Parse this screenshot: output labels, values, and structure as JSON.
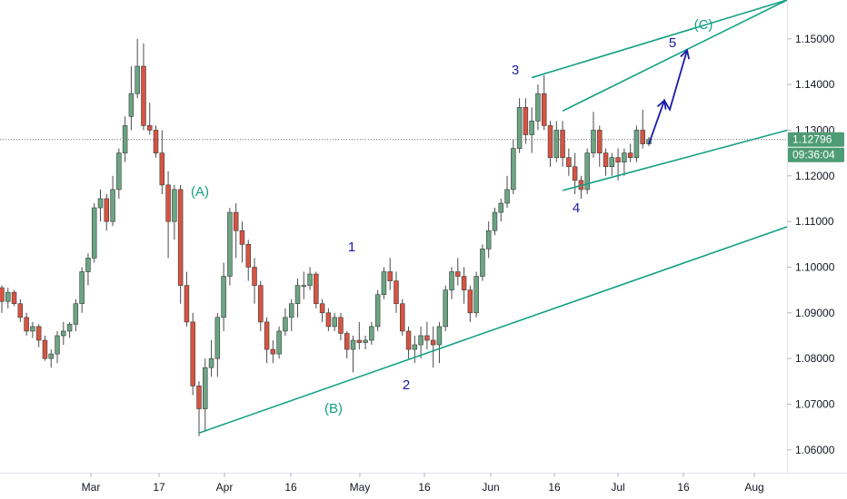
{
  "chart_data": {
    "type": "candlestick",
    "y_range": [
      1.055,
      1.1585
    ],
    "y_ticks": [
      "1.15000",
      "1.14000",
      "1.13000",
      "1.12000",
      "1.11000",
      "1.10000",
      "1.09000",
      "1.08000",
      "1.07000",
      "1.06000"
    ],
    "x_ticks": [
      "Mar",
      "17",
      "Apr",
      "16",
      "May",
      "16",
      "Jun",
      "16",
      "Jul",
      "16",
      "Aug"
    ],
    "last_price": "1.12796",
    "countdown": "09:36:04",
    "colors": {
      "up": "#6ba583",
      "down": "#d75442",
      "channel": "#14a085",
      "impulse": "#1a1aa8",
      "badge": "#4e9c74"
    },
    "candles": [
      [
        1.0955,
        1.096,
        1.09,
        1.0925
      ],
      [
        1.0925,
        1.0955,
        1.091,
        1.0945
      ],
      [
        1.0945,
        1.095,
        1.0915,
        1.092
      ],
      [
        1.092,
        1.093,
        1.088,
        1.089
      ],
      [
        1.089,
        1.09,
        1.085,
        1.086
      ],
      [
        1.086,
        1.088,
        1.0845,
        1.087
      ],
      [
        1.087,
        1.0875,
        1.0825,
        1.084
      ],
      [
        1.084,
        1.085,
        1.0795,
        1.08
      ],
      [
        1.08,
        1.082,
        1.078,
        1.081
      ],
      [
        1.081,
        1.086,
        1.079,
        1.085
      ],
      [
        1.085,
        1.088,
        1.083,
        1.086
      ],
      [
        1.086,
        1.088,
        1.0845,
        1.0875
      ],
      [
        1.0875,
        1.093,
        1.086,
        1.092
      ],
      [
        1.092,
        1.1,
        1.09,
        1.099
      ],
      [
        1.099,
        1.103,
        1.096,
        1.102
      ],
      [
        1.102,
        1.114,
        1.101,
        1.113
      ],
      [
        1.113,
        1.117,
        1.11,
        1.115
      ],
      [
        1.115,
        1.116,
        1.108,
        1.11
      ],
      [
        1.11,
        1.12,
        1.109,
        1.117
      ],
      [
        1.117,
        1.126,
        1.115,
        1.125
      ],
      [
        1.125,
        1.133,
        1.123,
        1.131
      ],
      [
        1.133,
        1.144,
        1.13,
        1.138
      ],
      [
        1.138,
        1.15,
        1.137,
        1.144
      ],
      [
        1.144,
        1.149,
        1.13,
        1.131
      ],
      [
        1.131,
        1.136,
        1.129,
        1.13
      ],
      [
        1.13,
        1.131,
        1.124,
        1.125
      ],
      [
        1.125,
        1.13,
        1.116,
        1.118
      ],
      [
        1.118,
        1.121,
        1.102,
        1.11
      ],
      [
        1.11,
        1.118,
        1.106,
        1.117
      ],
      [
        1.117,
        1.118,
        1.092,
        1.096
      ],
      [
        1.096,
        1.099,
        1.087,
        1.088
      ],
      [
        1.088,
        1.09,
        1.072,
        1.074
      ],
      [
        1.074,
        1.075,
        1.063,
        1.069
      ],
      [
        1.069,
        1.08,
        1.064,
        1.078
      ],
      [
        1.078,
        1.084,
        1.076,
        1.08
      ],
      [
        1.08,
        1.09,
        1.076,
        1.089
      ],
      [
        1.089,
        1.101,
        1.086,
        1.098
      ],
      [
        1.098,
        1.113,
        1.096,
        1.112
      ],
      [
        1.112,
        1.114,
        1.102,
        1.108
      ],
      [
        1.108,
        1.11,
        1.101,
        1.105
      ],
      [
        1.105,
        1.106,
        1.097,
        1.1
      ],
      [
        1.1,
        1.102,
        1.092,
        1.096
      ],
      [
        1.096,
        1.097,
        1.086,
        1.088
      ],
      [
        1.088,
        1.089,
        1.079,
        1.082
      ],
      [
        1.082,
        1.084,
        1.079,
        1.081
      ],
      [
        1.081,
        1.087,
        1.08,
        1.086
      ],
      [
        1.086,
        1.091,
        1.085,
        1.089
      ],
      [
        1.089,
        1.093,
        1.086,
        1.092
      ],
      [
        1.092,
        1.0975,
        1.089,
        1.096
      ],
      [
        1.096,
        1.099,
        1.093,
        1.096
      ],
      [
        1.096,
        1.1,
        1.095,
        1.0985
      ],
      [
        1.0985,
        1.099,
        1.091,
        1.092
      ],
      [
        1.092,
        1.093,
        1.088,
        1.09
      ],
      [
        1.09,
        1.091,
        1.086,
        1.087
      ],
      [
        1.087,
        1.09,
        1.086,
        1.089
      ],
      [
        1.089,
        1.09,
        1.084,
        1.0855
      ],
      [
        1.0855,
        1.086,
        1.08,
        1.082
      ],
      [
        1.082,
        1.085,
        1.077,
        1.084
      ],
      [
        1.084,
        1.088,
        1.082,
        1.0835
      ],
      [
        1.0835,
        1.085,
        1.082,
        1.084
      ],
      [
        1.084,
        1.088,
        1.083,
        1.087
      ],
      [
        1.087,
        1.095,
        1.086,
        1.094
      ],
      [
        1.094,
        1.1,
        1.093,
        1.099
      ],
      [
        1.099,
        1.102,
        1.095,
        1.097
      ],
      [
        1.097,
        1.099,
        1.09,
        1.092
      ],
      [
        1.092,
        1.093,
        1.085,
        1.086
      ],
      [
        1.086,
        1.087,
        1.08,
        1.082
      ],
      [
        1.082,
        1.085,
        1.079,
        1.083
      ],
      [
        1.083,
        1.087,
        1.08,
        1.085
      ],
      [
        1.085,
        1.088,
        1.082,
        1.084
      ],
      [
        1.084,
        1.087,
        1.078,
        1.083
      ],
      [
        1.083,
        1.088,
        1.079,
        1.087
      ],
      [
        1.087,
        1.096,
        1.086,
        1.095
      ],
      [
        1.095,
        1.1,
        1.093,
        1.099
      ],
      [
        1.099,
        1.102,
        1.096,
        1.098
      ],
      [
        1.098,
        1.1,
        1.092,
        1.095
      ],
      [
        1.095,
        1.096,
        1.088,
        1.09
      ],
      [
        1.09,
        1.099,
        1.089,
        1.098
      ],
      [
        1.098,
        1.105,
        1.097,
        1.104
      ],
      [
        1.104,
        1.11,
        1.102,
        1.108
      ],
      [
        1.108,
        1.113,
        1.107,
        1.112
      ],
      [
        1.112,
        1.115,
        1.11,
        1.114
      ],
      [
        1.114,
        1.12,
        1.113,
        1.117
      ],
      [
        1.117,
        1.128,
        1.116,
        1.126
      ],
      [
        1.126,
        1.137,
        1.125,
        1.135
      ],
      [
        1.135,
        1.137,
        1.127,
        1.129
      ],
      [
        1.129,
        1.135,
        1.125,
        1.132
      ],
      [
        1.132,
        1.14,
        1.13,
        1.138
      ],
      [
        1.138,
        1.142,
        1.13,
        1.131
      ],
      [
        1.131,
        1.132,
        1.122,
        1.124
      ],
      [
        1.124,
        1.132,
        1.123,
        1.13
      ],
      [
        1.13,
        1.132,
        1.122,
        1.124
      ],
      [
        1.124,
        1.126,
        1.12,
        1.122
      ],
      [
        1.122,
        1.125,
        1.116,
        1.119
      ],
      [
        1.119,
        1.12,
        1.115,
        1.117
      ],
      [
        1.117,
        1.126,
        1.116,
        1.125
      ],
      [
        1.125,
        1.134,
        1.124,
        1.13
      ],
      [
        1.13,
        1.131,
        1.122,
        1.125
      ],
      [
        1.125,
        1.126,
        1.12,
        1.122
      ],
      [
        1.122,
        1.125,
        1.12,
        1.124
      ],
      [
        1.124,
        1.126,
        1.119,
        1.123
      ],
      [
        1.123,
        1.126,
        1.12,
        1.125
      ],
      [
        1.125,
        1.127,
        1.123,
        1.124
      ],
      [
        1.124,
        1.131,
        1.123,
        1.13
      ],
      [
        1.13,
        1.1345,
        1.126,
        1.127
      ],
      [
        1.127,
        1.1285,
        1.1265,
        1.12796
      ]
    ],
    "annotations": {
      "labels": [
        {
          "text": "(A)",
          "color": "channel"
        },
        {
          "text": "(B)",
          "color": "channel"
        },
        {
          "text": "(C)",
          "color": "channel"
        },
        {
          "text": "1",
          "color": "impulse"
        },
        {
          "text": "2",
          "color": "impulse"
        },
        {
          "text": "3",
          "color": "impulse"
        },
        {
          "text": "4",
          "color": "impulse"
        },
        {
          "text": "5",
          "color": "impulse"
        }
      ]
    }
  }
}
